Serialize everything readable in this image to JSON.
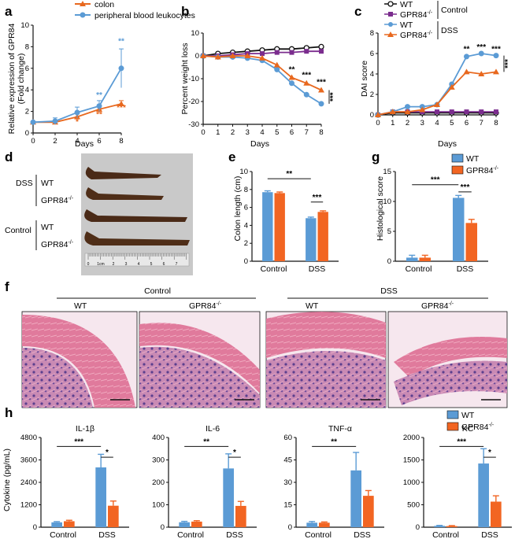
{
  "colors": {
    "wt": "#5b9bd5",
    "ko": "#f26522",
    "ko_line": "#e8681e",
    "ctrl_purple": "#7b2d8e",
    "axis": "#111111"
  },
  "panel_labels": {
    "a": "a",
    "b": "b",
    "c": "c",
    "d": "d",
    "e": "e",
    "f": "f",
    "g": "g",
    "h": "h"
  },
  "panel_a": {
    "legend": [
      "colon",
      "peripheral blood leukocytes"
    ],
    "ylabel1": "Relative expression of GPR84",
    "ylabel2": "(Fold change)",
    "xlabel": "Days",
    "sig_colon": [
      "*",
      "**",
      "***"
    ],
    "sig_pbl": [
      "**",
      "**"
    ]
  },
  "panel_b": {
    "ylabel": "Percent weight loss",
    "xlabel": "Days",
    "sig": [
      "**",
      "***",
      "***",
      "***"
    ]
  },
  "panel_c": {
    "ylabel": "DAI score",
    "xlabel": "Days",
    "legend": [
      "WT",
      "GPR84",
      "WT",
      "GPR84"
    ],
    "ko_sup": "-/-",
    "group_control": "Control",
    "group_dss": "DSS",
    "sig": [
      "**",
      "***",
      "***",
      "***"
    ]
  },
  "panel_d": {
    "dss": "DSS",
    "control": "Control",
    "wt": "WT",
    "gpr84": "GPR84",
    "ko_sup": "-/-",
    "ruler": [
      "0",
      "1cm",
      "2",
      "3",
      "4",
      "5",
      "6",
      "7"
    ]
  },
  "panel_e": {
    "ylabel": "Colon length (cm)",
    "sig": [
      "**",
      "***"
    ]
  },
  "panel_g": {
    "ylabel": "Histological score",
    "legend": [
      "WT",
      "GPR84"
    ],
    "ko_sup": "-/-",
    "sig": [
      "***",
      "***"
    ]
  },
  "panel_f": {
    "control": "Control",
    "dss": "DSS",
    "wt": "WT",
    "gpr84": "GPR84",
    "ko_sup": "-/-"
  },
  "panel_h": {
    "ylabel": "Cytokine (pg/mL)",
    "legend": [
      "WT",
      "GPR84"
    ],
    "ko_sup": "-/-"
  },
  "chart_data": [
    {
      "id": "a",
      "type": "line",
      "title": "",
      "xlabel": "Days",
      "ylabel": "Relative expression of GPR84 (Fold change)",
      "xlim": [
        0,
        8
      ],
      "ylim": [
        0,
        10
      ],
      "xticks": [
        0,
        2,
        4,
        6,
        8
      ],
      "yticks": [
        0,
        2,
        4,
        6,
        8,
        10
      ],
      "series": [
        {
          "name": "colon",
          "x": [
            0,
            2,
            4,
            6,
            8
          ],
          "y": [
            1,
            1,
            1.5,
            2.2,
            2.7
          ],
          "err": [
            0,
            0.2,
            0.3,
            0.3,
            0.3
          ]
        },
        {
          "name": "peripheral blood leukocytes",
          "x": [
            0,
            2,
            4,
            6,
            8
          ],
          "y": [
            1,
            1.1,
            1.9,
            2.5,
            6
          ],
          "err": [
            0,
            0.3,
            0.5,
            0.5,
            1.8
          ]
        }
      ]
    },
    {
      "id": "b",
      "type": "line",
      "xlabel": "Days",
      "ylabel": "Percent weight loss",
      "xlim": [
        0,
        8
      ],
      "ylim": [
        -30,
        10
      ],
      "xticks": [
        0,
        1,
        2,
        3,
        4,
        5,
        6,
        7,
        8
      ],
      "yticks": [
        -30,
        -20,
        -10,
        0,
        10
      ],
      "series": [
        {
          "name": "WT Control",
          "x": [
            0,
            1,
            2,
            3,
            4,
            5,
            6,
            7,
            8
          ],
          "y": [
            0,
            1,
            1.5,
            2,
            2.5,
            3,
            3,
            3.5,
            4
          ]
        },
        {
          "name": "GPR84-/- Control",
          "x": [
            0,
            1,
            2,
            3,
            4,
            5,
            6,
            7,
            8
          ],
          "y": [
            0,
            0,
            0.5,
            1,
            1,
            1.5,
            1.5,
            2,
            2
          ]
        },
        {
          "name": "WT DSS",
          "x": [
            0,
            1,
            2,
            3,
            4,
            5,
            6,
            7,
            8
          ],
          "y": [
            0,
            -0.5,
            -0.5,
            -1,
            -2,
            -6,
            -12,
            -17,
            -21
          ]
        },
        {
          "name": "GPR84-/- DSS",
          "x": [
            0,
            1,
            2,
            3,
            4,
            5,
            6,
            7,
            8
          ],
          "y": [
            0,
            -0.5,
            0,
            0,
            -1,
            -4,
            -9.5,
            -12,
            -15
          ]
        }
      ]
    },
    {
      "id": "c",
      "type": "line",
      "xlabel": "Days",
      "ylabel": "DAI score",
      "xlim": [
        0,
        8
      ],
      "ylim": [
        0,
        8
      ],
      "xticks": [
        0,
        1,
        2,
        3,
        4,
        5,
        6,
        7,
        8
      ],
      "yticks": [
        0,
        2,
        4,
        6,
        8
      ],
      "series": [
        {
          "name": "WT Control",
          "x": [
            0,
            1,
            2,
            3,
            4,
            5,
            6,
            7,
            8
          ],
          "y": [
            0,
            0.2,
            0.2,
            0.2,
            0.2,
            0.2,
            0.2,
            0.2,
            0.2
          ]
        },
        {
          "name": "GPR84-/- Control",
          "x": [
            0,
            1,
            2,
            3,
            4,
            5,
            6,
            7,
            8
          ],
          "y": [
            0,
            0.3,
            0.3,
            0.3,
            0.3,
            0.3,
            0.3,
            0.3,
            0.3
          ]
        },
        {
          "name": "WT DSS",
          "x": [
            0,
            1,
            2,
            3,
            4,
            5,
            6,
            7,
            8
          ],
          "y": [
            0,
            0.3,
            0.8,
            0.8,
            1,
            3,
            5.7,
            6,
            5.8
          ]
        },
        {
          "name": "GPR84-/- DSS",
          "x": [
            0,
            1,
            2,
            3,
            4,
            5,
            6,
            7,
            8
          ],
          "y": [
            0,
            0.3,
            0.3,
            0.5,
            1,
            2.7,
            4.2,
            4,
            4.2
          ]
        }
      ]
    },
    {
      "id": "e",
      "type": "bar",
      "categories": [
        "Control",
        "DSS"
      ],
      "ylabel": "Colon length (cm)",
      "ylim": [
        0,
        10
      ],
      "yticks": [
        0,
        2,
        4,
        6,
        8,
        10
      ],
      "series": [
        {
          "name": "WT",
          "values": [
            7.7,
            4.8
          ],
          "err": [
            0.15,
            0.12
          ]
        },
        {
          "name": "GPR84-/-",
          "values": [
            7.6,
            5.5
          ],
          "err": [
            0.12,
            0.12
          ]
        }
      ]
    },
    {
      "id": "g",
      "type": "bar",
      "categories": [
        "Control",
        "DSS"
      ],
      "ylabel": "Histological score",
      "ylim": [
        0,
        15
      ],
      "yticks": [
        0,
        5,
        10,
        15
      ],
      "series": [
        {
          "name": "WT",
          "values": [
            0.6,
            10.6
          ],
          "err": [
            0.4,
            0.4
          ]
        },
        {
          "name": "GPR84-/-",
          "values": [
            0.6,
            6.4
          ],
          "err": [
            0.4,
            0.6
          ]
        }
      ]
    },
    {
      "id": "h1",
      "type": "bar",
      "title": "IL-1β",
      "categories": [
        "Control",
        "DSS"
      ],
      "ylim": [
        0,
        4800
      ],
      "yticks": [
        0,
        1200,
        2400,
        3600,
        4800
      ],
      "series": [
        {
          "name": "WT",
          "values": [
            260,
            3200
          ],
          "err": [
            40,
            700
          ]
        },
        {
          "name": "GPR84-/-",
          "values": [
            320,
            1150
          ],
          "err": [
            50,
            250
          ]
        }
      ],
      "sig": [
        "***",
        "*"
      ]
    },
    {
      "id": "h2",
      "type": "bar",
      "title": "IL-6",
      "categories": [
        "Control",
        "DSS"
      ],
      "ylim": [
        0,
        400
      ],
      "yticks": [
        0,
        100,
        200,
        300,
        400
      ],
      "series": [
        {
          "name": "WT",
          "values": [
            22,
            262
          ],
          "err": [
            4,
            65
          ]
        },
        {
          "name": "GPR84-/-",
          "values": [
            25,
            95
          ],
          "err": [
            4,
            20
          ]
        }
      ],
      "sig": [
        "**",
        "*"
      ]
    },
    {
      "id": "h3",
      "type": "bar",
      "title": "TNF-α",
      "categories": [
        "Control",
        "DSS"
      ],
      "ylim": [
        0,
        60
      ],
      "yticks": [
        0,
        15,
        30,
        45,
        60
      ],
      "series": [
        {
          "name": "WT",
          "values": [
            3,
            38
          ],
          "err": [
            0.8,
            12
          ]
        },
        {
          "name": "GPR84-/-",
          "values": [
            3,
            21
          ],
          "err": [
            0.5,
            3.5
          ]
        }
      ],
      "sig": [
        "**"
      ]
    },
    {
      "id": "h4",
      "type": "bar",
      "title": "KC",
      "categories": [
        "Control",
        "DSS"
      ],
      "ylim": [
        0,
        2000
      ],
      "yticks": [
        0,
        500,
        1000,
        1500,
        2000
      ],
      "series": [
        {
          "name": "WT",
          "values": [
            30,
            1420
          ],
          "err": [
            10,
            330
          ]
        },
        {
          "name": "GPR84-/-",
          "values": [
            25,
            570
          ],
          "err": [
            10,
            130
          ]
        }
      ],
      "sig": [
        "***",
        "*"
      ]
    }
  ]
}
